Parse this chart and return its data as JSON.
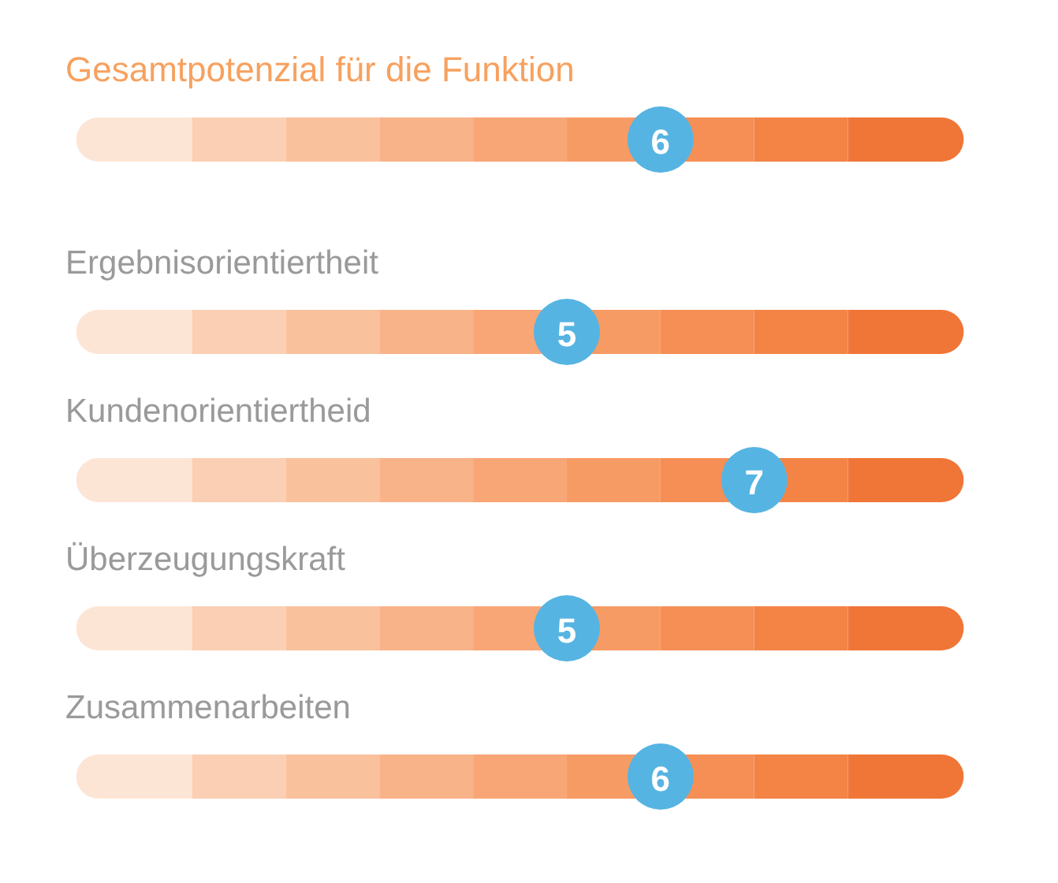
{
  "chart_data": [
    {
      "type": "other",
      "data_labels": true,
      "title": "Gesamtpotenzial für die Funktion",
      "categories": [
        null
      ],
      "colors": [
        "#fde5d6",
        "#fbcfb3",
        "#fac19d",
        "#f9b389",
        "#f8a676",
        "#f79b65",
        "#f58f55",
        "#f38446",
        "#f07638"
      ],
      "series": [
        {
          "color": "#56b4e2",
          "values": [
            6
          ]
        }
      ]
    },
    {
      "type": "other",
      "data_labels": true,
      "categories": [
        "Ergebnisorientiertheit",
        "Kundenorientiertheid",
        "Überzeugungskraft",
        "Zusammenarbeiten"
      ],
      "colors": [
        "#fde5d6",
        "#fbcfb3",
        "#fac19d",
        "#f9b389",
        "#f8a676",
        "#f79b65",
        "#f58f55",
        "#f38446",
        "#f07638"
      ],
      "series": [
        {
          "color": "#56b4e2",
          "values": [
            5,
            7,
            5,
            6
          ]
        }
      ]
    }
  ]
}
